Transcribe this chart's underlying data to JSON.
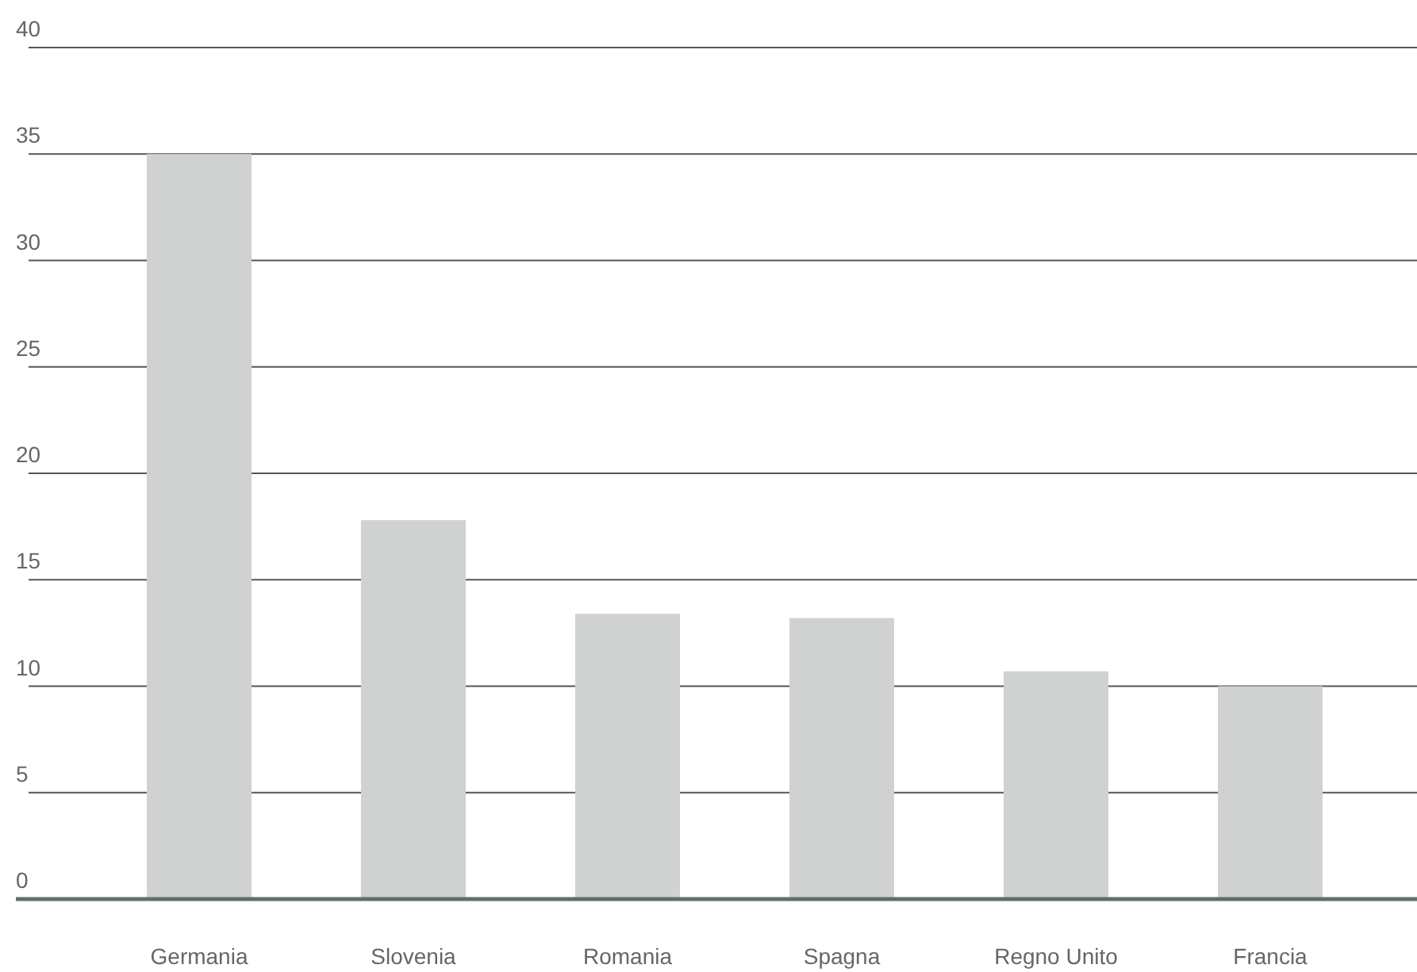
{
  "chart_data": {
    "type": "bar",
    "categories": [
      "Germania",
      "Slovenia",
      "Romania",
      "Spagna",
      "Regno Unito",
      "Francia"
    ],
    "values": [
      35,
      17.8,
      13.4,
      13.2,
      10.7,
      10
    ],
    "color": "#d0d2d1",
    "ylim": [
      0,
      40
    ],
    "yticks": [
      0,
      5,
      10,
      15,
      20,
      25,
      30,
      35,
      40
    ],
    "grid": "y"
  }
}
